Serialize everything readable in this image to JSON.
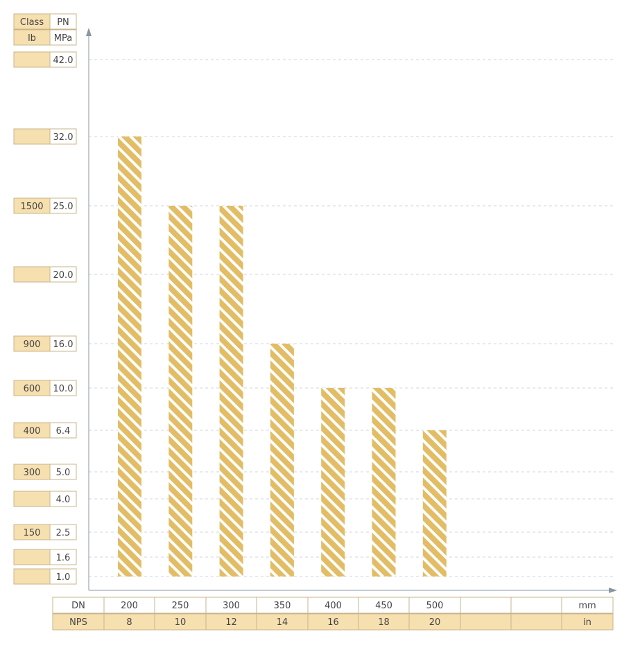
{
  "colors": {
    "bar_fill": "#e3bd66",
    "bar_stripe": "#ffffff",
    "tan_cell": "#f7e0b0",
    "cell_border": "#c9b48a",
    "gridline": "#cfd6dc",
    "axis": "#8a96a3"
  },
  "y_header": {
    "class_label": "Class",
    "pn_label": "PN",
    "lb_label": "lb",
    "mpa_label": "MPa"
  },
  "y_rows": [
    {
      "pn": "42.0",
      "cls": ""
    },
    {
      "pn": "32.0",
      "cls": ""
    },
    {
      "pn": "25.0",
      "cls": "1500"
    },
    {
      "pn": "20.0",
      "cls": ""
    },
    {
      "pn": "16.0",
      "cls": "900"
    },
    {
      "pn": "10.0",
      "cls": "600"
    },
    {
      "pn": "6.4",
      "cls": "400"
    },
    {
      "pn": "5.0",
      "cls": "300"
    },
    {
      "pn": "4.0",
      "cls": ""
    },
    {
      "pn": "2.5",
      "cls": "150"
    },
    {
      "pn": "1.6",
      "cls": ""
    },
    {
      "pn": "1.0",
      "cls": ""
    }
  ],
  "x_table": {
    "dn_label": "DN",
    "nps_label": "NPS",
    "dn_values": [
      "200",
      "250",
      "300",
      "350",
      "400",
      "450",
      "500",
      "",
      ""
    ],
    "nps_values": [
      "8",
      "10",
      "12",
      "14",
      "16",
      "18",
      "20",
      "",
      ""
    ],
    "dn_unit": "mm",
    "nps_unit": "in"
  },
  "chart_data": {
    "type": "bar",
    "categories": [
      "200",
      "250",
      "300",
      "350",
      "400",
      "450",
      "500"
    ],
    "values": [
      32.0,
      25.0,
      25.0,
      16.0,
      10.0,
      10.0,
      6.4
    ],
    "baseline": 1.0,
    "y_ticks": [
      42.0,
      32.0,
      25.0,
      20.0,
      16.0,
      10.0,
      6.4,
      5.0,
      4.0,
      2.5,
      1.6,
      1.0
    ],
    "y_scale": "categorical-rows",
    "grid": true,
    "bar_pattern": "diagonal-hatch"
  }
}
